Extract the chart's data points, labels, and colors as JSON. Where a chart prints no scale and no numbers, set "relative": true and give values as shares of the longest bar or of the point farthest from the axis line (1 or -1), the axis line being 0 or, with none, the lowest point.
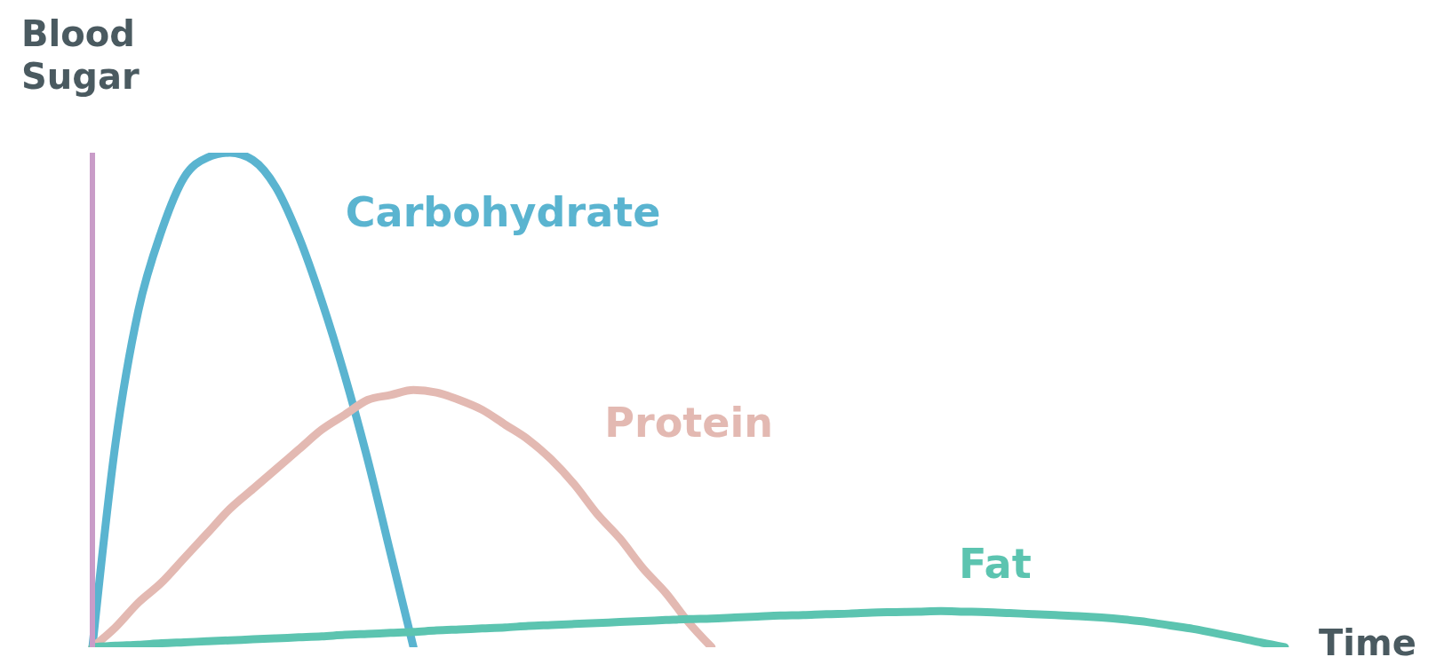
{
  "chart_data": {
    "type": "line",
    "relative": true,
    "ylabel": "Blood Sugar",
    "xlabel": "Time",
    "categories": [
      null,
      null,
      null,
      null,
      null,
      null,
      null,
      null,
      null,
      null,
      null,
      null,
      null,
      null,
      null,
      null,
      null,
      null,
      null,
      null,
      null,
      null,
      null,
      null,
      null,
      null,
      null,
      null,
      null,
      null,
      null,
      null,
      null,
      null,
      null,
      null,
      null,
      null,
      null,
      null,
      null,
      null,
      null,
      null,
      null,
      null,
      null,
      null,
      null,
      null,
      null,
      null,
      null
    ],
    "grid": false,
    "legend": false,
    "marker": "none",
    "line_style": "solid",
    "series": [
      {
        "name": "Carbohydrate",
        "color": "#5ab4d0",
        "values": [
          0,
          0.41,
          0.68,
          0.84,
          0.95,
          0.99,
          1,
          0.985,
          0.93,
          0.83,
          0.7,
          0.55,
          0.38,
          0.19,
          0,
          null,
          null,
          null,
          null,
          null,
          null,
          null,
          null,
          null,
          null,
          null,
          null,
          null,
          null,
          null,
          null,
          null,
          null,
          null,
          null,
          null,
          null,
          null,
          null,
          null,
          null,
          null,
          null,
          null,
          null,
          null,
          null,
          null,
          null,
          null,
          null,
          null,
          null
        ]
      },
      {
        "name": "Protein",
        "color": "#e3b9b2",
        "values": [
          0,
          0.04,
          0.09,
          0.13,
          0.18,
          0.23,
          0.28,
          0.32,
          0.36,
          0.4,
          0.44,
          0.47,
          0.5,
          0.51,
          0.52,
          0.515,
          0.5,
          0.48,
          0.45,
          0.42,
          0.38,
          0.33,
          0.27,
          0.22,
          0.16,
          0.11,
          0.05,
          0,
          null,
          null,
          null,
          null,
          null,
          null,
          null,
          null,
          null,
          null,
          null,
          null,
          null,
          null,
          null,
          null,
          null,
          null,
          null,
          null,
          null,
          null,
          null,
          null,
          null
        ]
      },
      {
        "name": "Fat",
        "color": "#5cc4b0",
        "values": [
          0,
          0.003,
          0.005,
          0.008,
          0.01,
          0.012,
          0.014,
          0.016,
          0.018,
          0.02,
          0.022,
          0.025,
          0.027,
          0.029,
          0.031,
          0.034,
          0.036,
          0.038,
          0.04,
          0.043,
          0.045,
          0.047,
          0.049,
          0.051,
          0.053,
          0.055,
          0.057,
          0.058,
          0.06,
          0.062,
          0.064,
          0.065,
          0.067,
          0.068,
          0.07,
          0.071,
          0.072,
          0.073,
          0.072,
          0.071,
          0.069,
          0.067,
          0.065,
          0.063,
          0.06,
          0.056,
          0.051,
          0.044,
          0.037,
          0.028,
          0.019,
          0.009,
          0
        ]
      }
    ]
  }
}
